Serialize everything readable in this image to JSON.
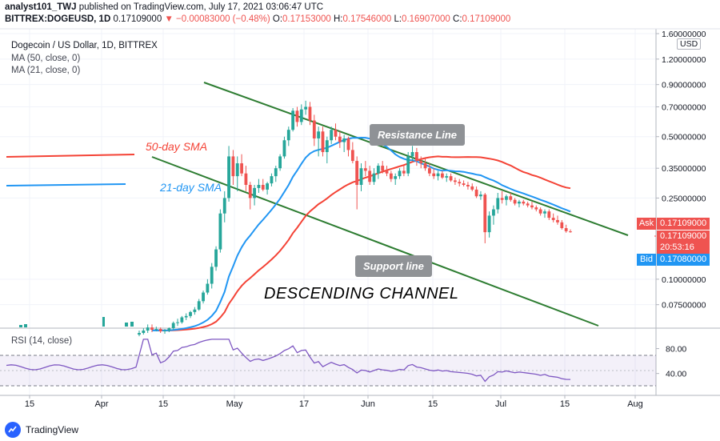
{
  "header": {
    "author": "analyst101_TWJ",
    "published_text": "published on TradingView.com, July 17, 2021 03:06:47 UTC",
    "symbol": "BITTREX:DOGEUSD, 1D",
    "last": "0.17109000",
    "change": "▼ −0.00083000 (−0.48%)",
    "o_label": "O:",
    "o": "0.17153000",
    "h_label": "H:",
    "h": "0.17546000",
    "l_label": "L:",
    "l": "0.16907000",
    "c_label": "C:",
    "c": "0.17109000"
  },
  "legend": {
    "title": "Dogecoin / US Dollar, 1D, BITTREX",
    "ma50": "MA (50, close, 0)",
    "ma21": "MA (21, close, 0)"
  },
  "rsi_legend": "RSI (14, close)",
  "annotations": {
    "resistance": "Resistance Line",
    "support": "Support line",
    "channel": "DESCENDING CHANNEL",
    "sma50": "50-day SMA",
    "sma21": "21-day SMA"
  },
  "price_tags": {
    "ask_label": "Ask",
    "ask": "0.17109000",
    "last": "0.17109000",
    "countdown": "20:53:16",
    "bid_label": "Bid",
    "bid": "0.17080000",
    "currency": "USD"
  },
  "colors": {
    "up": "#26a69a",
    "down": "#ef5350",
    "ma50": "#f44336",
    "ma21": "#2196f3",
    "channel": "#2e7d32",
    "rsi": "#7e57c2",
    "ask": "#ef5350",
    "bid": "#2196f3"
  },
  "brand": "TradingView",
  "chart_data": {
    "type": "candlestick",
    "y_scale": "log",
    "price_axis_ticks": [
      "1.60000000",
      "1.20000000",
      "0.90000000",
      "0.70000000",
      "0.50000000",
      "0.35000000",
      "0.25000000",
      "0.10000000",
      "0.07500000"
    ],
    "rsi_axis_ticks": [
      "80.00",
      "40.00"
    ],
    "x_tick_labels": [
      "15",
      "Apr",
      "15",
      "May",
      "17",
      "Jun",
      "15",
      "Jul",
      "15",
      "Aug"
    ],
    "rsi_levels": [
      70,
      30
    ],
    "candles": [
      [
        0.0535,
        0.056,
        0.0525,
        0.0545
      ],
      [
        0.0545,
        0.0575,
        0.0535,
        0.056
      ],
      [
        0.056,
        0.06,
        0.0545,
        0.058
      ],
      [
        0.058,
        0.06,
        0.055,
        0.0565
      ],
      [
        0.0565,
        0.0585,
        0.0555,
        0.057
      ],
      [
        0.057,
        0.058,
        0.0545,
        0.0555
      ],
      [
        0.0555,
        0.057,
        0.054,
        0.056
      ],
      [
        0.056,
        0.058,
        0.055,
        0.0575
      ],
      [
        0.0575,
        0.062,
        0.0565,
        0.061
      ],
      [
        0.061,
        0.064,
        0.059,
        0.0615
      ],
      [
        0.0615,
        0.066,
        0.0605,
        0.065
      ],
      [
        0.065,
        0.068,
        0.063,
        0.066
      ],
      [
        0.066,
        0.07,
        0.0645,
        0.069
      ],
      [
        0.069,
        0.073,
        0.067,
        0.071
      ],
      [
        0.071,
        0.08,
        0.07,
        0.078
      ],
      [
        0.078,
        0.088,
        0.076,
        0.086
      ],
      [
        0.086,
        0.1,
        0.084,
        0.095
      ],
      [
        0.095,
        0.12,
        0.09,
        0.115
      ],
      [
        0.115,
        0.145,
        0.11,
        0.14
      ],
      [
        0.14,
        0.22,
        0.135,
        0.21
      ],
      [
        0.21,
        0.27,
        0.19,
        0.25
      ],
      [
        0.25,
        0.45,
        0.24,
        0.4
      ],
      [
        0.4,
        0.43,
        0.29,
        0.32
      ],
      [
        0.32,
        0.4,
        0.27,
        0.37
      ],
      [
        0.37,
        0.41,
        0.32,
        0.33
      ],
      [
        0.33,
        0.36,
        0.27,
        0.29
      ],
      [
        0.29,
        0.3,
        0.22,
        0.25
      ],
      [
        0.25,
        0.29,
        0.23,
        0.28
      ],
      [
        0.28,
        0.31,
        0.265,
        0.29
      ],
      [
        0.29,
        0.31,
        0.27,
        0.275
      ],
      [
        0.275,
        0.3,
        0.26,
        0.295
      ],
      [
        0.295,
        0.33,
        0.285,
        0.32
      ],
      [
        0.32,
        0.36,
        0.3,
        0.35
      ],
      [
        0.35,
        0.41,
        0.34,
        0.4
      ],
      [
        0.4,
        0.5,
        0.39,
        0.48
      ],
      [
        0.48,
        0.56,
        0.45,
        0.54
      ],
      [
        0.54,
        0.69,
        0.53,
        0.67
      ],
      [
        0.67,
        0.7,
        0.56,
        0.59
      ],
      [
        0.59,
        0.72,
        0.57,
        0.68
      ],
      [
        0.68,
        0.75,
        0.64,
        0.7
      ],
      [
        0.7,
        0.74,
        0.57,
        0.6
      ],
      [
        0.6,
        0.64,
        0.45,
        0.49
      ],
      [
        0.49,
        0.56,
        0.4,
        0.53
      ],
      [
        0.53,
        0.56,
        0.4,
        0.42
      ],
      [
        0.42,
        0.5,
        0.37,
        0.48
      ],
      [
        0.48,
        0.56,
        0.46,
        0.54
      ],
      [
        0.54,
        0.58,
        0.48,
        0.5
      ],
      [
        0.5,
        0.53,
        0.44,
        0.47
      ],
      [
        0.47,
        0.51,
        0.42,
        0.49
      ],
      [
        0.49,
        0.5,
        0.4,
        0.43
      ],
      [
        0.43,
        0.47,
        0.37,
        0.38
      ],
      [
        0.38,
        0.4,
        0.22,
        0.29
      ],
      [
        0.29,
        0.37,
        0.27,
        0.35
      ],
      [
        0.35,
        0.38,
        0.32,
        0.34
      ],
      [
        0.34,
        0.36,
        0.29,
        0.3
      ],
      [
        0.3,
        0.35,
        0.29,
        0.33
      ],
      [
        0.33,
        0.37,
        0.31,
        0.36
      ],
      [
        0.36,
        0.38,
        0.33,
        0.34
      ],
      [
        0.34,
        0.36,
        0.32,
        0.33
      ],
      [
        0.33,
        0.34,
        0.3,
        0.31
      ],
      [
        0.31,
        0.33,
        0.29,
        0.32
      ],
      [
        0.32,
        0.35,
        0.31,
        0.34
      ],
      [
        0.34,
        0.36,
        0.32,
        0.33
      ],
      [
        0.33,
        0.42,
        0.32,
        0.4
      ],
      [
        0.4,
        0.45,
        0.38,
        0.42
      ],
      [
        0.42,
        0.44,
        0.36,
        0.38
      ],
      [
        0.38,
        0.4,
        0.35,
        0.37
      ],
      [
        0.37,
        0.39,
        0.34,
        0.35
      ],
      [
        0.35,
        0.37,
        0.32,
        0.33
      ],
      [
        0.33,
        0.35,
        0.31,
        0.32
      ],
      [
        0.32,
        0.34,
        0.305,
        0.33
      ],
      [
        0.33,
        0.34,
        0.31,
        0.315
      ],
      [
        0.315,
        0.33,
        0.3,
        0.32
      ],
      [
        0.32,
        0.33,
        0.3,
        0.305
      ],
      [
        0.305,
        0.315,
        0.29,
        0.3
      ],
      [
        0.3,
        0.31,
        0.285,
        0.295
      ],
      [
        0.295,
        0.305,
        0.285,
        0.29
      ],
      [
        0.29,
        0.3,
        0.275,
        0.285
      ],
      [
        0.285,
        0.295,
        0.27,
        0.275
      ],
      [
        0.275,
        0.285,
        0.25,
        0.255
      ],
      [
        0.255,
        0.27,
        0.245,
        0.26
      ],
      [
        0.26,
        0.265,
        0.15,
        0.17
      ],
      [
        0.17,
        0.215,
        0.16,
        0.205
      ],
      [
        0.205,
        0.23,
        0.185,
        0.22
      ],
      [
        0.22,
        0.265,
        0.21,
        0.25
      ],
      [
        0.25,
        0.27,
        0.235,
        0.245
      ],
      [
        0.245,
        0.26,
        0.23,
        0.255
      ],
      [
        0.255,
        0.265,
        0.24,
        0.245
      ],
      [
        0.245,
        0.25,
        0.23,
        0.235
      ],
      [
        0.235,
        0.245,
        0.225,
        0.24
      ],
      [
        0.24,
        0.245,
        0.23,
        0.235
      ],
      [
        0.235,
        0.24,
        0.225,
        0.23
      ],
      [
        0.23,
        0.24,
        0.22,
        0.225
      ],
      [
        0.225,
        0.23,
        0.215,
        0.22
      ],
      [
        0.22,
        0.225,
        0.205,
        0.21
      ],
      [
        0.21,
        0.22,
        0.2,
        0.215
      ],
      [
        0.215,
        0.22,
        0.195,
        0.2
      ],
      [
        0.2,
        0.21,
        0.19,
        0.195
      ],
      [
        0.195,
        0.205,
        0.185,
        0.19
      ],
      [
        0.19,
        0.195,
        0.175,
        0.178
      ],
      [
        0.178,
        0.185,
        0.169,
        0.172
      ],
      [
        0.1715,
        0.1755,
        0.1691,
        0.1711
      ]
    ]
  }
}
